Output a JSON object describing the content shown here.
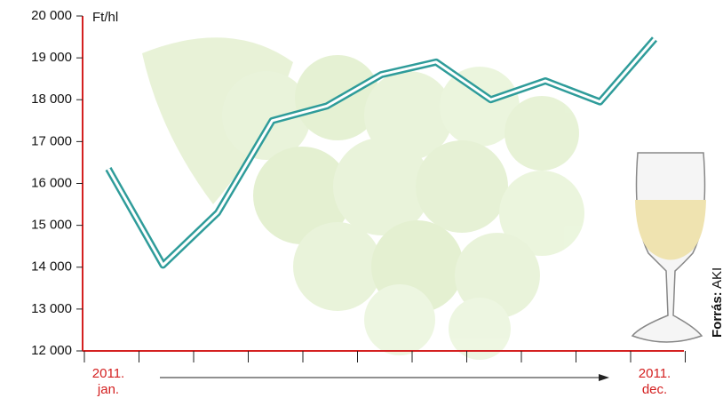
{
  "chart_data": {
    "type": "line",
    "y_unit": "Ft/hl",
    "categories": [
      "2011. jan.",
      null,
      null,
      null,
      null,
      null,
      null,
      null,
      null,
      null,
      "2011. dec."
    ],
    "series": [
      {
        "name": "Ft/hl",
        "color": "#2f9c9a",
        "values": [
          16350,
          14050,
          15300,
          17500,
          17850,
          18600,
          18900,
          18000,
          18450,
          17950,
          19450
        ]
      }
    ],
    "ylim": [
      12000,
      20000
    ],
    "yticks": [
      {
        "value": 12000,
        "label": "12 000"
      },
      {
        "value": 13000,
        "label": "13 000"
      },
      {
        "value": 14000,
        "label": "14 000"
      },
      {
        "value": 15000,
        "label": "15 000"
      },
      {
        "value": 16000,
        "label": "16 000"
      },
      {
        "value": 17000,
        "label": "17 000"
      },
      {
        "value": 18000,
        "label": "18 000"
      },
      {
        "value": 19000,
        "label": "19 000"
      },
      {
        "value": 20000,
        "label": "20 000"
      }
    ],
    "axis_color": "#d42020",
    "source_label": "Forrás:",
    "source": "AKI"
  }
}
